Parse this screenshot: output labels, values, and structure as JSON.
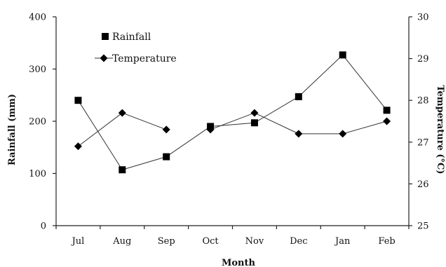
{
  "chart_data": {
    "type": "line",
    "title": "",
    "xlabel": "Month",
    "ylabel": "Rainfall (mm)",
    "y2label": "Temperature (°C)",
    "categories": [
      "Jul",
      "Aug",
      "Sep",
      "Oct",
      "Nov",
      "Dec",
      "Jan",
      "Feb"
    ],
    "ylim": [
      0,
      400
    ],
    "y2lim": [
      25,
      30
    ],
    "yticks": [
      "0",
      "100",
      "200",
      "300",
      "400"
    ],
    "y2ticks": [
      "25",
      "26",
      "27",
      "28",
      "29",
      "30"
    ],
    "grid": false,
    "legend_position": "top-left",
    "series": [
      {
        "name": "Rainfall",
        "axis": "left",
        "marker": "square",
        "connected": [
          false,
          true,
          true,
          true,
          true,
          true,
          true,
          true
        ],
        "values": [
          240,
          107,
          132,
          190,
          197,
          247,
          327,
          221
        ]
      },
      {
        "name": "Temperature",
        "axis": "right",
        "marker": "diamond",
        "connected": [
          false,
          true,
          true,
          false,
          true,
          true,
          true,
          true
        ],
        "values": [
          26.9,
          27.7,
          27.3,
          27.3,
          27.7,
          27.2,
          27.2,
          27.5
        ]
      }
    ]
  }
}
